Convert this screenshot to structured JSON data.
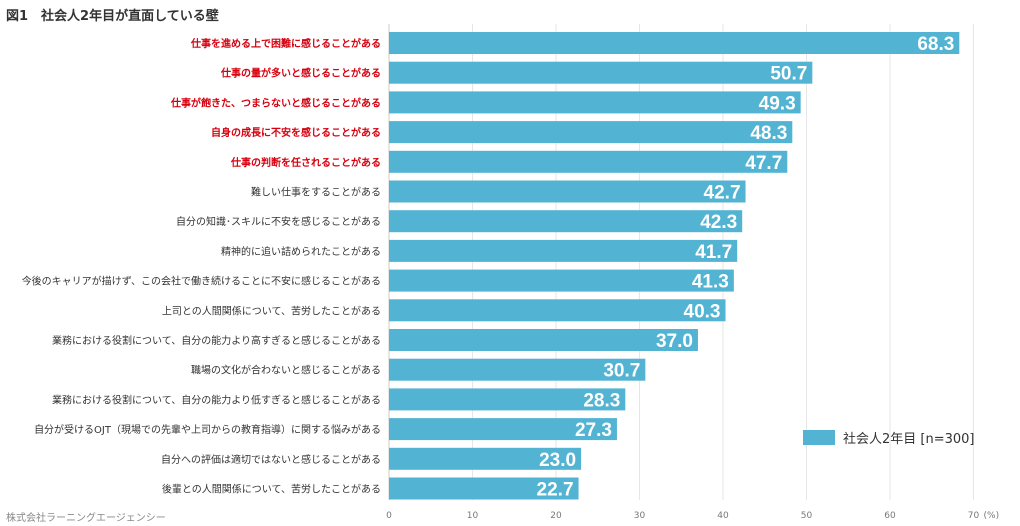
{
  "title": "図1　社会人2年目が直面している壁",
  "source": "株式会社ラーニングエージェンシー",
  "colors": {
    "bar": "#53b3d3",
    "highlight_text": "#d7000f",
    "normal_text": "#333333",
    "grid": "#e6e6e6"
  },
  "chart_data": {
    "type": "bar",
    "orientation": "horizontal",
    "categories": [
      "仕事を進める上で困難に感じることがある",
      "仕事の量が多いと感じることがある",
      "仕事が飽きた、つまらないと感じることがある",
      "自身の成長に不安を感じることがある",
      "仕事の判断を任されることがある",
      "難しい仕事をすることがある",
      "自分の知識･スキルに不安を感じることがある",
      "精神的に追い詰められたことがある",
      "今後のキャリアが描けず、この会社で働き続けることに不安に感じることがある",
      "上司との人間関係について、苦労したことがある",
      "業務における役割について、自分の能力より高すぎると感じることがある",
      "職場の文化が合わないと感じることがある",
      "業務における役割について、自分の能力より低すぎると感じることがある",
      "自分が受けるOJT（現場での先輩や上司からの教育指導）に関する悩みがある",
      "自分への評価は適切ではないと感じることがある",
      "後輩との人間関係について、苦労したことがある"
    ],
    "highlighted": [
      true,
      true,
      true,
      true,
      true,
      false,
      false,
      false,
      false,
      false,
      false,
      false,
      false,
      false,
      false,
      false
    ],
    "series": [
      {
        "name": "社会人2年目 [n=300]",
        "values": [
          68.3,
          50.7,
          49.3,
          48.3,
          47.7,
          42.7,
          42.3,
          41.7,
          41.3,
          40.3,
          37.0,
          30.7,
          28.3,
          27.3,
          23.0,
          22.7
        ]
      }
    ],
    "value_labels": [
      "68.3",
      "50.7",
      "49.3",
      "48.3",
      "47.7",
      "42.7",
      "42.3",
      "41.7",
      "41.3",
      "40.3",
      "37.0",
      "30.7",
      "28.3",
      "27.3",
      "23.0",
      "22.7"
    ],
    "xlim": [
      0,
      70
    ],
    "xticks": [
      "0",
      "10",
      "20",
      "30",
      "40",
      "50",
      "60",
      "70"
    ],
    "x_unit": "(%)",
    "grid": true,
    "legend_position": "bottom-right"
  }
}
